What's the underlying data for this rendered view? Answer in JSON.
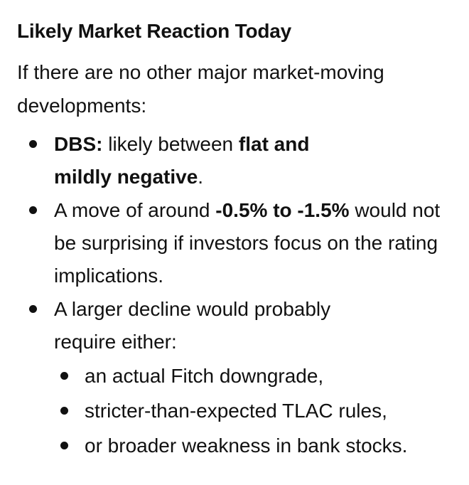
{
  "heading": "Likely Market Reaction Today",
  "intro": "If there are no other major market-moving developments:",
  "bullets": [
    {
      "label": "DBS:",
      "text_1": " likely between ",
      "bold_1": "flat and",
      "bold_2": "mildly negative",
      "text_2": "."
    },
    {
      "text_1": "A move of around ",
      "bold_1": "-0.5% to -1.5%",
      "text_2": " would not be surprising if investors focus on the rating implications."
    },
    {
      "text_1": "A larger decline would probably",
      "text_2": "require either:",
      "sub": [
        "an actual Fitch downgrade,",
        "stricter-than-expected TLAC rules,",
        "or broader weakness in bank stocks."
      ]
    }
  ]
}
